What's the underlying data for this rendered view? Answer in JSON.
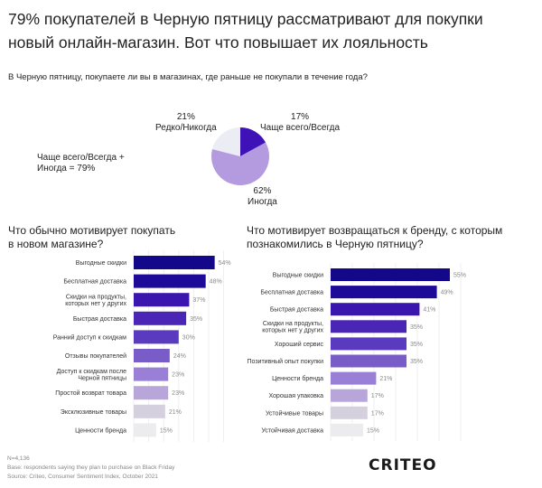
{
  "header": {
    "title_line1": "79% покупателей в Черную пятницу рассматривают для покупки",
    "title_line2": "новый онлайн-магазин. Вот что повышает их лояльность",
    "question": "В Черную пятницу, покупаете ли вы в магазинах, где раньше не покупали в течение года?"
  },
  "pie_note": {
    "line1": "Чаще всего/Всегда +",
    "line2": "Иногда = 79%"
  },
  "chart_data": [
    {
      "type": "pie",
      "title": "В Черную пятницу, покупаете ли вы в магазинах, где раньше не покупали в течение года?",
      "slices": [
        {
          "label": "Чаще всего/Всегда",
          "value": 17,
          "value_label": "17%",
          "color": "#3f12b8"
        },
        {
          "label": "Иногда",
          "value": 62,
          "value_label": "62%",
          "color": "#b49be0"
        },
        {
          "label": "Редко/Никогда",
          "value": 21,
          "value_label": "21%",
          "color": "#ececf4"
        }
      ]
    },
    {
      "type": "bar",
      "orientation": "horizontal",
      "title_line1": "Что обычно мотивирует покупать",
      "title_line2": "в новом магазине?",
      "categories": [
        [
          "Выгодные скидки"
        ],
        [
          "Бесплатная доставка"
        ],
        [
          "Скидки на продукты,",
          "которых нет у других"
        ],
        [
          "Быстрая доставка"
        ],
        [
          "Ранний доступ к скидкам"
        ],
        [
          "Отзывы покупателей"
        ],
        [
          "Доступ к скидкам после",
          "Черной пятницы"
        ],
        [
          "Простой возврат товара"
        ],
        [
          "Эксклюзивные товары"
        ],
        [
          "Ценности бренда"
        ]
      ],
      "values": [
        54,
        48,
        37,
        35,
        30,
        24,
        23,
        23,
        21,
        15
      ],
      "value_labels": [
        "54%",
        "48%",
        "37%",
        "35%",
        "30%",
        "24%",
        "23%",
        "23%",
        "21%",
        "15%"
      ],
      "colors": [
        "#14088a",
        "#1e0a98",
        "#3a16ae",
        "#4a25b6",
        "#5a3abf",
        "#7a5cc9",
        "#9a7fd6",
        "#b8a6db",
        "#d4d0de",
        "#ececef"
      ],
      "xlim": [
        0,
        90
      ],
      "grid": true
    },
    {
      "type": "bar",
      "orientation": "horizontal",
      "title_line1": "Что мотивирует возвращаться к бренду, с которым",
      "title_line2": "познакомились в Черную пятницу?",
      "categories": [
        [
          "Выгодные скидки"
        ],
        [
          "Бесплатная доставка"
        ],
        [
          "Быстрая доставка"
        ],
        [
          "Скидки на продукты,",
          "которых нет у других"
        ],
        [
          "Хороший сервис"
        ],
        [
          "Позитивный опыт покупки"
        ],
        [
          "Ценности бренда"
        ],
        [
          "Хорошая упаковка"
        ],
        [
          "Устойчивые товары"
        ],
        [
          "Устойчивая доставка"
        ]
      ],
      "values": [
        55,
        49,
        41,
        35,
        35,
        35,
        21,
        17,
        17,
        15
      ],
      "value_labels": [
        "55%",
        "49%",
        "41%",
        "35%",
        "35%",
        "35%",
        "21%",
        "17%",
        "17%",
        "15%"
      ],
      "colors": [
        "#14088a",
        "#1e0a98",
        "#3a16ae",
        "#4a25b6",
        "#5a3abf",
        "#7a5cc9",
        "#9a7fd6",
        "#b8a6db",
        "#d4d0de",
        "#ececef"
      ],
      "xlim": [
        0,
        66
      ],
      "grid": true
    }
  ],
  "footer": {
    "n": "N=4,136",
    "base": "Base: respondents saying they plan to purchase on Black Friday",
    "source": "Source: Criteo, Consumer Sentiment Index, October 2021"
  },
  "logo": "CRITEO"
}
